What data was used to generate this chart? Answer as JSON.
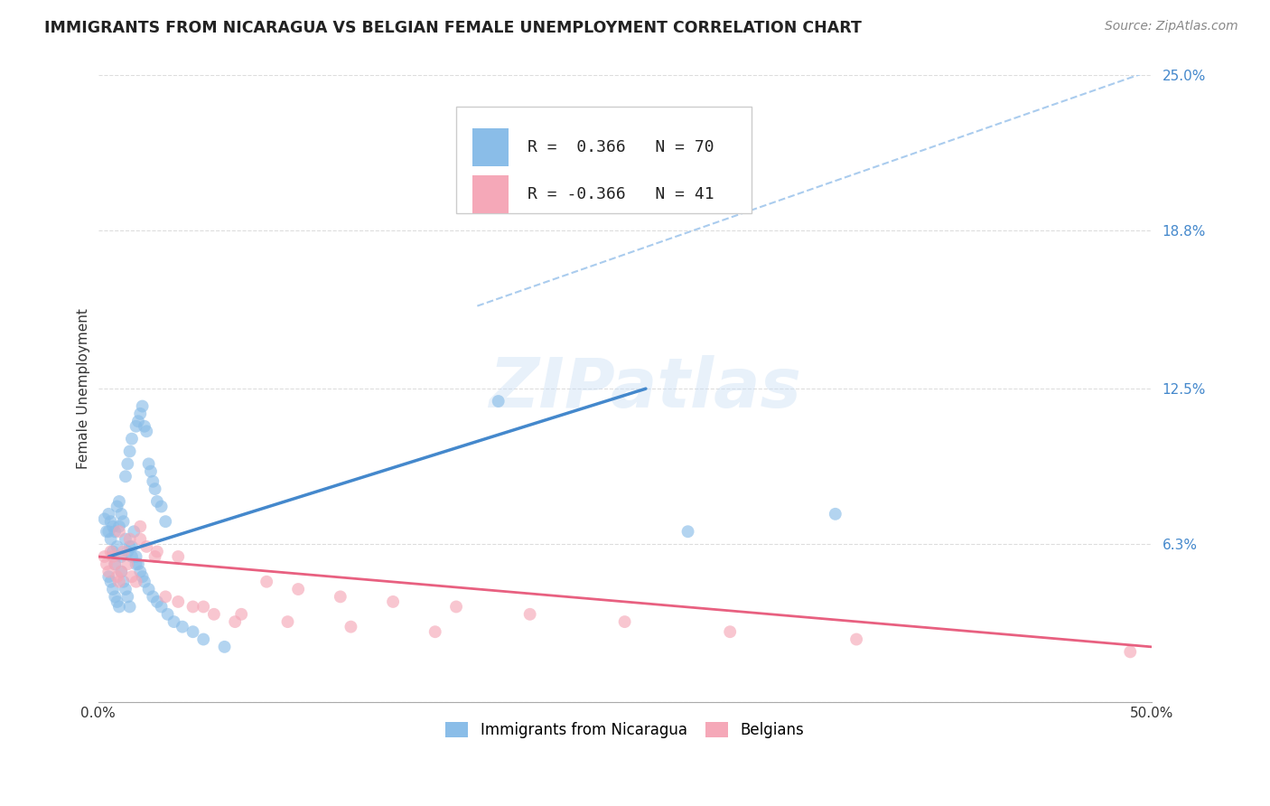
{
  "title": "IMMIGRANTS FROM NICARAGUA VS BELGIAN FEMALE UNEMPLOYMENT CORRELATION CHART",
  "source": "Source: ZipAtlas.com",
  "ylabel": "Female Unemployment",
  "xlim": [
    0.0,
    0.5
  ],
  "ylim": [
    0.0,
    0.25
  ],
  "yticks": [
    0.0,
    0.063,
    0.125,
    0.188,
    0.25
  ],
  "ytick_labels": [
    "",
    "6.3%",
    "12.5%",
    "18.8%",
    "25.0%"
  ],
  "grid_color": "#dddddd",
  "background_color": "#ffffff",
  "blue_color": "#8abde8",
  "pink_color": "#f5a8b8",
  "blue_line_color": "#4488cc",
  "pink_line_color": "#e86080",
  "dashed_line_color": "#aaccee",
  "legend_r_blue": "0.366",
  "legend_n_blue": "70",
  "legend_r_pink": "-0.366",
  "legend_n_pink": "41",
  "blue_scatter_x": [
    0.003,
    0.004,
    0.005,
    0.005,
    0.006,
    0.006,
    0.007,
    0.007,
    0.008,
    0.008,
    0.009,
    0.009,
    0.01,
    0.01,
    0.011,
    0.011,
    0.012,
    0.013,
    0.013,
    0.014,
    0.014,
    0.015,
    0.015,
    0.016,
    0.016,
    0.017,
    0.018,
    0.018,
    0.019,
    0.02,
    0.021,
    0.022,
    0.023,
    0.024,
    0.025,
    0.026,
    0.027,
    0.028,
    0.03,
    0.032,
    0.005,
    0.006,
    0.007,
    0.008,
    0.009,
    0.01,
    0.011,
    0.012,
    0.013,
    0.014,
    0.015,
    0.016,
    0.018,
    0.019,
    0.02,
    0.021,
    0.022,
    0.024,
    0.026,
    0.028,
    0.03,
    0.033,
    0.036,
    0.04,
    0.045,
    0.05,
    0.06,
    0.19,
    0.28,
    0.35
  ],
  "blue_scatter_y": [
    0.073,
    0.068,
    0.075,
    0.068,
    0.072,
    0.065,
    0.07,
    0.06,
    0.068,
    0.055,
    0.078,
    0.062,
    0.08,
    0.07,
    0.075,
    0.058,
    0.072,
    0.09,
    0.065,
    0.095,
    0.06,
    0.1,
    0.062,
    0.105,
    0.058,
    0.068,
    0.11,
    0.055,
    0.112,
    0.115,
    0.118,
    0.11,
    0.108,
    0.095,
    0.092,
    0.088,
    0.085,
    0.08,
    0.078,
    0.072,
    0.05,
    0.048,
    0.045,
    0.042,
    0.04,
    0.038,
    0.052,
    0.048,
    0.045,
    0.042,
    0.038,
    0.062,
    0.058,
    0.055,
    0.052,
    0.05,
    0.048,
    0.045,
    0.042,
    0.04,
    0.038,
    0.035,
    0.032,
    0.03,
    0.028,
    0.025,
    0.022,
    0.12,
    0.068,
    0.075
  ],
  "pink_scatter_x": [
    0.003,
    0.004,
    0.005,
    0.006,
    0.007,
    0.008,
    0.009,
    0.01,
    0.011,
    0.012,
    0.014,
    0.016,
    0.018,
    0.02,
    0.023,
    0.027,
    0.032,
    0.038,
    0.045,
    0.055,
    0.065,
    0.08,
    0.095,
    0.115,
    0.14,
    0.17,
    0.205,
    0.25,
    0.3,
    0.36,
    0.01,
    0.015,
    0.02,
    0.028,
    0.038,
    0.05,
    0.068,
    0.09,
    0.12,
    0.16,
    0.49
  ],
  "pink_scatter_y": [
    0.058,
    0.055,
    0.052,
    0.06,
    0.058,
    0.055,
    0.05,
    0.048,
    0.052,
    0.06,
    0.055,
    0.05,
    0.048,
    0.065,
    0.062,
    0.058,
    0.042,
    0.04,
    0.038,
    0.035,
    0.032,
    0.048,
    0.045,
    0.042,
    0.04,
    0.038,
    0.035,
    0.032,
    0.028,
    0.025,
    0.068,
    0.065,
    0.07,
    0.06,
    0.058,
    0.038,
    0.035,
    0.032,
    0.03,
    0.028,
    0.02
  ],
  "blue_line_x": [
    0.005,
    0.26
  ],
  "blue_line_y": [
    0.058,
    0.125
  ],
  "dashed_line_x": [
    0.18,
    0.5
  ],
  "dashed_line_y": [
    0.158,
    0.252
  ],
  "pink_line_x": [
    0.0,
    0.5
  ],
  "pink_line_y": [
    0.058,
    0.022
  ]
}
